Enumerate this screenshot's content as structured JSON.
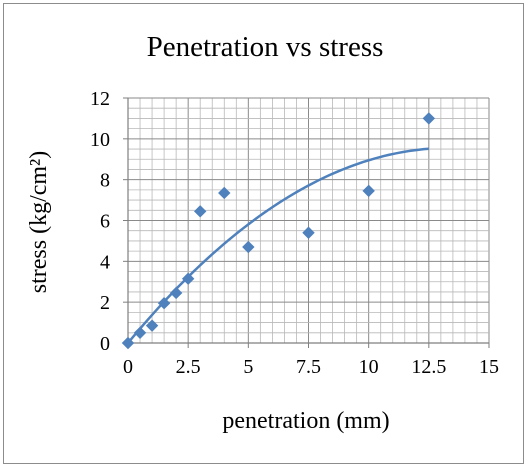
{
  "chart_data": {
    "type": "scatter",
    "title": "Penetration vs stress",
    "xlabel": "penetration (mm)",
    "ylabel": "stress (kg/cm²)",
    "xlim": [
      0,
      15
    ],
    "ylim": [
      0,
      12
    ],
    "x_ticks": [
      0,
      2.5,
      5,
      7.5,
      10,
      12.5,
      15
    ],
    "x_tick_labels": [
      "0",
      "2.5",
      "5",
      "7.5",
      "10",
      "12.5",
      "15"
    ],
    "y_ticks": [
      0,
      2,
      4,
      6,
      8,
      10,
      12
    ],
    "y_tick_labels": [
      "0",
      "2",
      "4",
      "6",
      "8",
      "10",
      "12"
    ],
    "grid": true,
    "legend": false,
    "series": [
      {
        "marker": "diamond",
        "color": "#4f81bd",
        "points": [
          {
            "x": 0,
            "y": 0
          },
          {
            "x": 0.5,
            "y": 0.5
          },
          {
            "x": 1,
            "y": 0.85
          },
          {
            "x": 1.5,
            "y": 1.95
          },
          {
            "x": 2,
            "y": 2.45
          },
          {
            "x": 2.5,
            "y": 3.15
          },
          {
            "x": 3,
            "y": 6.45
          },
          {
            "x": 4,
            "y": 7.35
          },
          {
            "x": 5,
            "y": 4.7
          },
          {
            "x": 7.5,
            "y": 5.4
          },
          {
            "x": 10,
            "y": 7.45
          },
          {
            "x": 12.5,
            "y": 11
          }
        ]
      }
    ],
    "trendline": {
      "type": "polynomial",
      "color": "#4f81bd",
      "x_range": [
        0,
        12.5
      ],
      "coefficients": [
        0,
        1.43,
        -0.0535
      ]
    }
  }
}
